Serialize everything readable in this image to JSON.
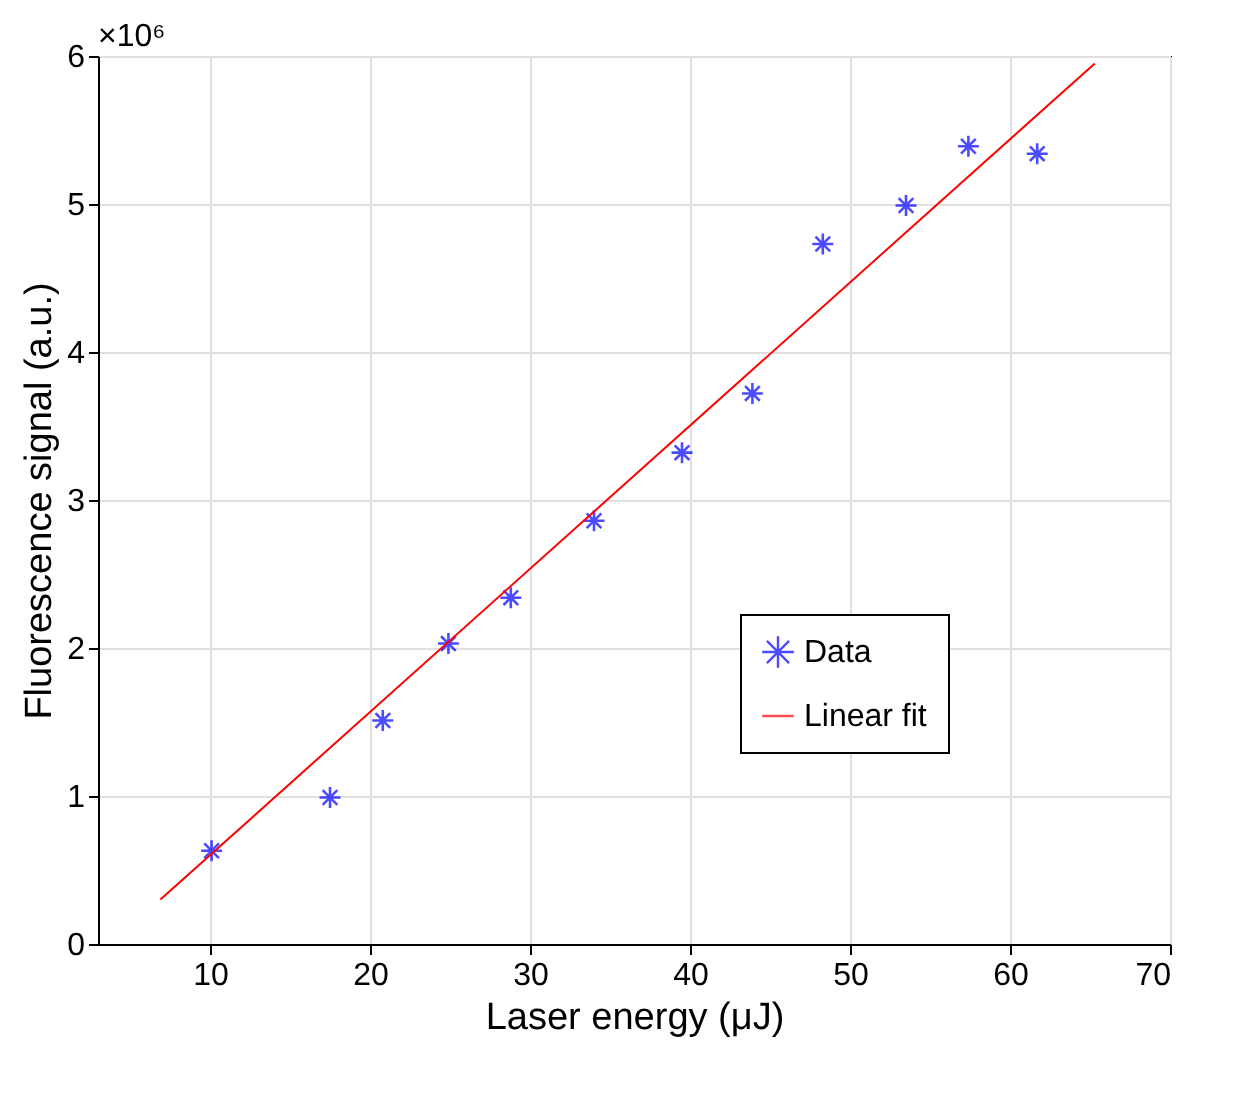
{
  "chart_data": {
    "type": "scatter",
    "xlabel": "Laser energy (μJ)",
    "ylabel": "Fluorescence signal (a.u.)",
    "annotations": [
      "×10⁶"
    ],
    "xlim": [
      3,
      70
    ],
    "xticks": [
      10,
      20,
      30,
      40,
      50,
      60,
      70
    ],
    "ylim": [
      0,
      6
    ],
    "yticks": [
      0,
      1,
      2,
      3,
      4,
      5,
      6
    ],
    "grid": true,
    "legend": "bottom right",
    "series": [
      {
        "name": "Data",
        "color": "#0000ff",
        "marker": "cross",
        "x": [
          10.1,
          17.5,
          20.8,
          24.9,
          28.8,
          34.0,
          39.5,
          43.9,
          48.3,
          53.5,
          57.4,
          61.7
        ],
        "values": [
          0.63,
          0.99,
          1.51,
          2.03,
          2.34,
          2.86,
          3.32,
          3.72,
          4.73,
          4.99,
          5.39,
          5.34
        ]
      },
      {
        "name": "Linear fit",
        "type": "line",
        "color": "#ff0000",
        "marker": "none",
        "line_style": "solid",
        "x": [
          6.9,
          65.3
        ],
        "values": [
          0.3,
          5.95
        ]
      }
    ]
  }
}
